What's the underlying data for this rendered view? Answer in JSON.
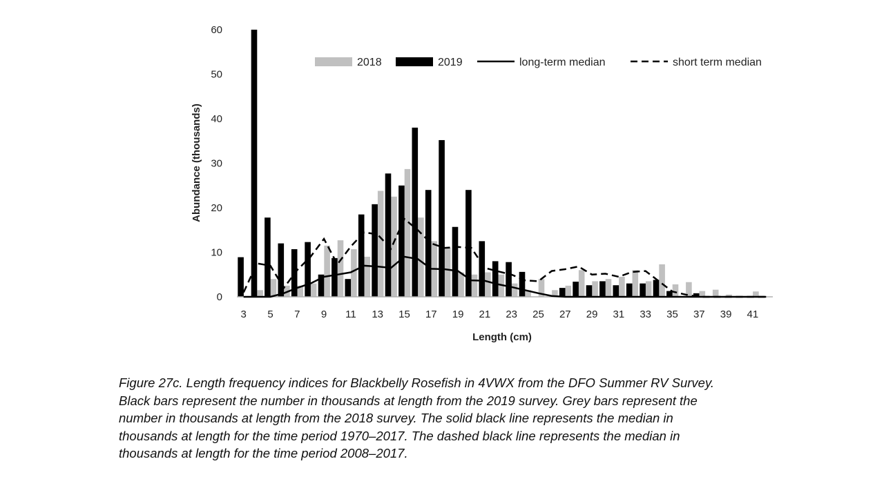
{
  "chart_data": {
    "type": "bar",
    "xlabel": "Length (cm)",
    "ylabel": "Abundance (thousands)",
    "ylim": [
      0,
      60
    ],
    "yticks": [
      0,
      10,
      20,
      30,
      40,
      50,
      60
    ],
    "x": [
      3,
      4,
      5,
      6,
      7,
      8,
      9,
      10,
      11,
      12,
      13,
      14,
      15,
      16,
      17,
      18,
      19,
      20,
      21,
      22,
      23,
      24,
      25,
      26,
      27,
      28,
      29,
      30,
      31,
      32,
      33,
      34,
      35,
      36,
      37,
      38,
      39,
      40,
      41,
      42
    ],
    "xtick_labels": [
      "3",
      "5",
      "7",
      "9",
      "11",
      "13",
      "15",
      "17",
      "19",
      "21",
      "23",
      "25",
      "27",
      "29",
      "31",
      "33",
      "35",
      "37",
      "39",
      "41"
    ],
    "legend_position": "top",
    "series": [
      {
        "name": "2018",
        "kind": "bar",
        "color": "#c0c0c0",
        "values": [
          0,
          1.5,
          4,
          2.5,
          2.5,
          3,
          11.5,
          12.7,
          10.7,
          9,
          23.8,
          22.5,
          28.7,
          17.8,
          12.5,
          11,
          5.5,
          5,
          5.5,
          5,
          3,
          1.5,
          4,
          1.5,
          2.5,
          6,
          3.5,
          4,
          4.5,
          6,
          3.5,
          7.3,
          2.8,
          3.3,
          1.3,
          1.6,
          0.5,
          0,
          1.2,
          0
        ]
      },
      {
        "name": "2019",
        "kind": "bar",
        "color": "#000000",
        "values": [
          8.9,
          60,
          17.8,
          12,
          10.7,
          12.3,
          5,
          8.7,
          4,
          18.5,
          20.8,
          27.7,
          25,
          38,
          24,
          35.2,
          15.7,
          24,
          12.5,
          8,
          7.8,
          5.6,
          0,
          0,
          2,
          3.4,
          2.6,
          3.5,
          2.6,
          3,
          3,
          3.8,
          1.3,
          0,
          0.8,
          0,
          0,
          0,
          0,
          0
        ]
      },
      {
        "name": "long-term median",
        "kind": "line",
        "style": "solid",
        "color": "#000000",
        "values": [
          0,
          0,
          0,
          0.8,
          2,
          3,
          4.5,
          5,
          5.5,
          7,
          6.8,
          6.5,
          9,
          8.5,
          6.3,
          6.2,
          5.8,
          3.7,
          3.6,
          2.8,
          2.2,
          1.5,
          0.8,
          0.2,
          0,
          0,
          0,
          0,
          0,
          0,
          0,
          0,
          0,
          0,
          0,
          0,
          0,
          0,
          0,
          0
        ]
      },
      {
        "name": "short term median",
        "kind": "line",
        "style": "dashed",
        "color": "#000000",
        "values": [
          1,
          7.5,
          7,
          2,
          6,
          9,
          13,
          7.3,
          11.3,
          14.5,
          14,
          10.8,
          17.5,
          15,
          12,
          11,
          11.2,
          11,
          6.5,
          5.7,
          5,
          3.7,
          3.5,
          5.8,
          6.2,
          6.8,
          5,
          5.2,
          4.5,
          5.6,
          5.8,
          3.5,
          1.2,
          0.5,
          0,
          0,
          0,
          0,
          0,
          0
        ]
      }
    ]
  },
  "caption": [
    "Figure 27c. Length frequency indices for Blackbelly Rosefish in 4VWX from the DFO Summer RV Survey.",
    "Black bars represent the number in thousands at length from the 2019 survey. Grey bars represent the",
    "number in thousands at length from the 2018 survey. The solid black line represents the median in",
    "thousands at length for the time period 1970–2017. The dashed black line represents the median in",
    "thousands at length for the time period 2008–2017."
  ]
}
